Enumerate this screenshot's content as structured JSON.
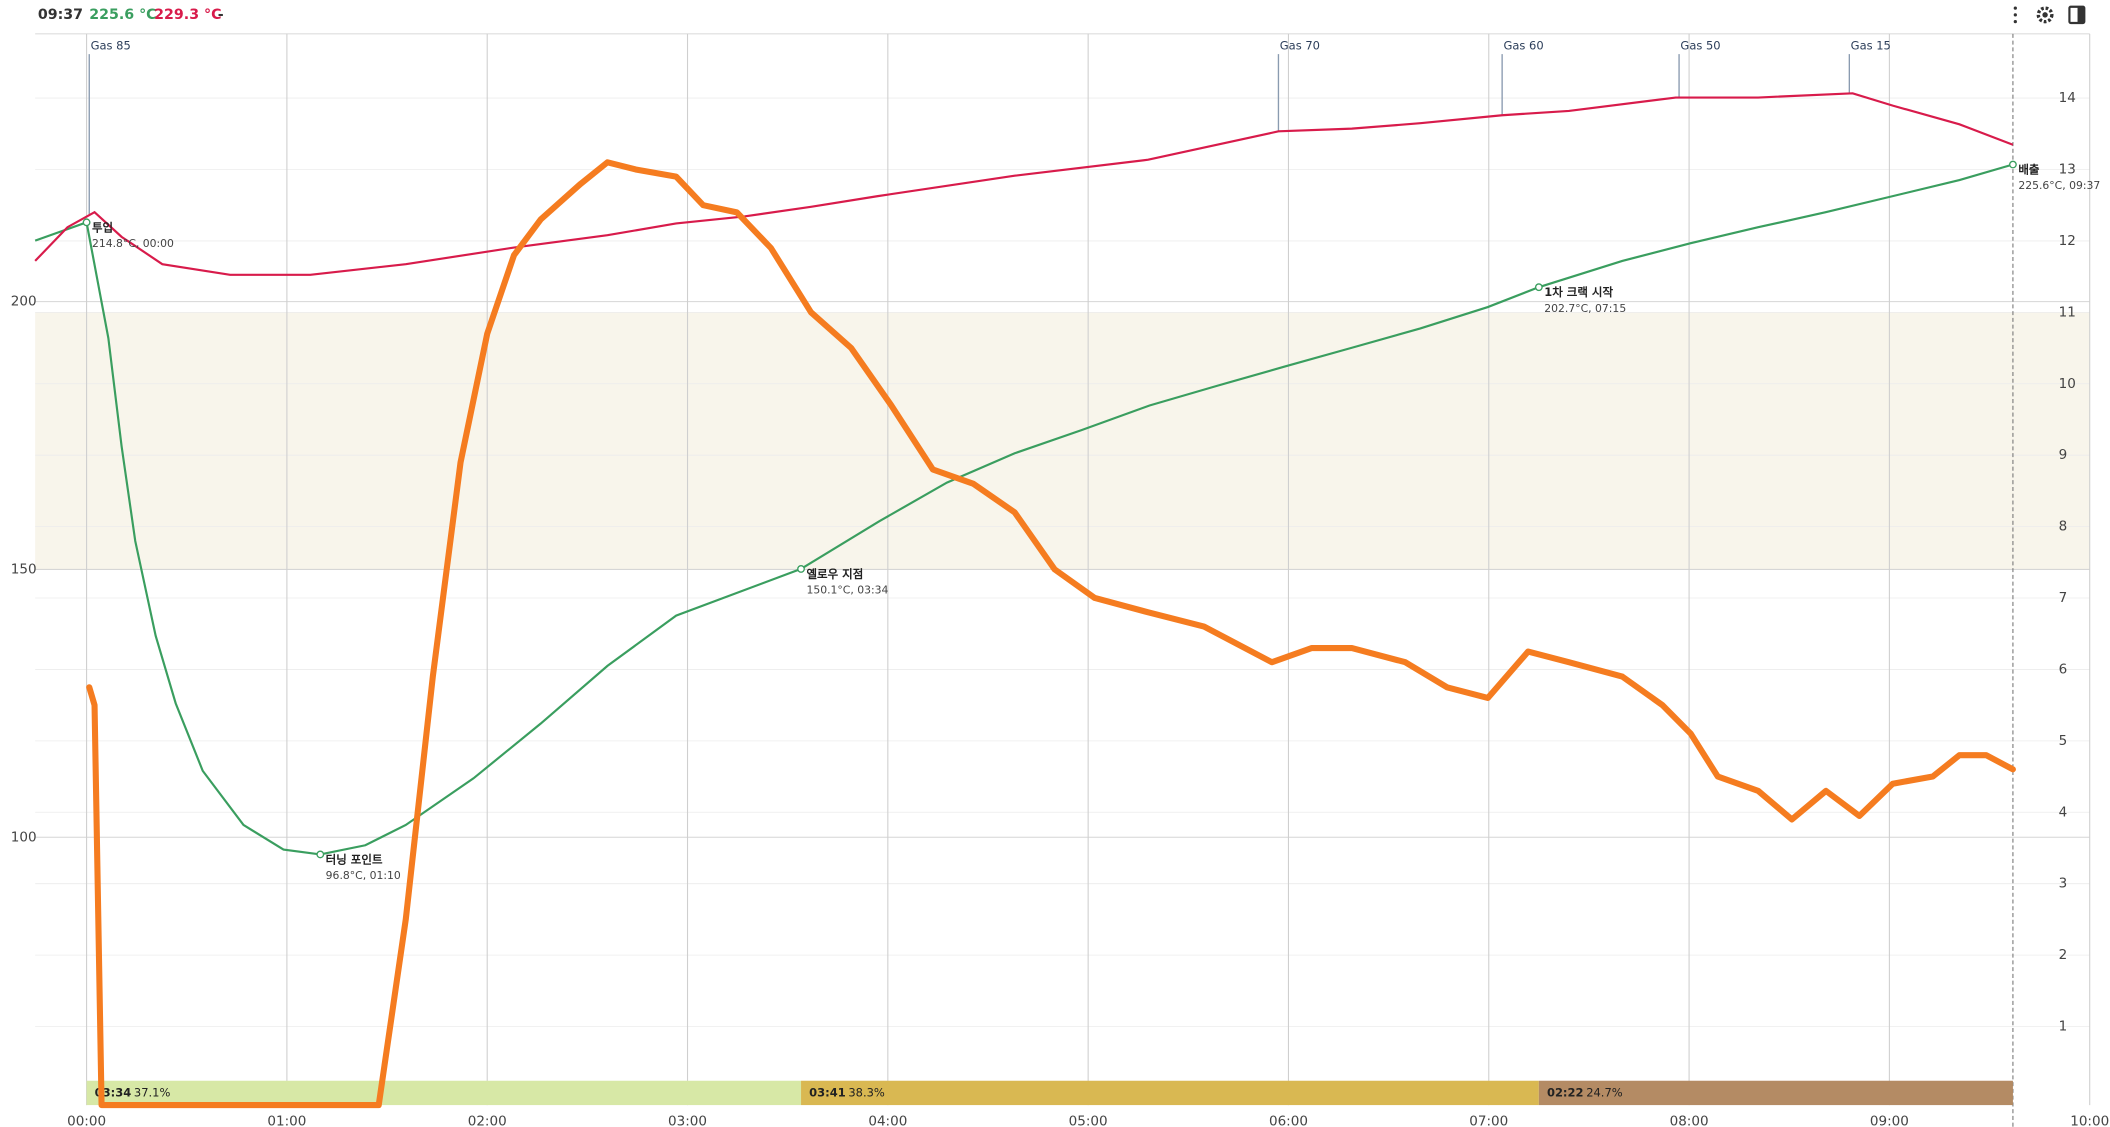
{
  "header": {
    "time": "09:37",
    "bean_temp": "225.6 °C",
    "env_temp": "229.3 °C",
    "ror": "-"
  },
  "chart_data": {
    "type": "line",
    "xlim": [
      -15.4,
      600
    ],
    "xticks": [
      {
        "value": 0,
        "label": "00:00"
      },
      {
        "value": 60,
        "label": "01:00"
      },
      {
        "value": 120,
        "label": "02:00"
      },
      {
        "value": 180,
        "label": "03:00"
      },
      {
        "value": 240,
        "label": "04:00"
      },
      {
        "value": 300,
        "label": "05:00"
      },
      {
        "value": 360,
        "label": "06:00"
      },
      {
        "value": 420,
        "label": "07:00"
      },
      {
        "value": 480,
        "label": "08:00"
      },
      {
        "value": 540,
        "label": "09:00"
      },
      {
        "value": 600,
        "label": "10:00"
      }
    ],
    "ylim": [
      50,
      250
    ],
    "yticks": [
      100,
      150,
      200
    ],
    "y2lim": [
      -0.1,
      14.9
    ],
    "y2ticks": [
      1,
      2,
      3,
      4,
      5,
      6,
      7,
      8,
      9,
      10,
      11,
      12,
      13,
      14
    ],
    "band": {
      "range": [
        150,
        198
      ],
      "color": "#f8f5eb"
    },
    "current_x": 577,
    "series": [
      {
        "color": "#3a9e5f",
        "x": [
          -15.4,
          0,
          6.5,
          10.5,
          14.6,
          20.7,
          26.7,
          34.8,
          47,
          59,
          70,
          83.5,
          95.6,
          115.9,
          136,
          156,
          176.6,
          214,
          237.4,
          257.7,
          278,
          298,
          318.4,
          338.7,
          359,
          379,
          399.5,
          419.7,
          435,
          460,
          480.5,
          500.7,
          520.9,
          541,
          561,
          577
        ],
        "values": [
          211.4,
          214.8,
          193.2,
          173,
          155.3,
          137.6,
          125,
          112.4,
          102.3,
          97.7,
          96.8,
          98.5,
          102.3,
          111,
          121.2,
          132,
          141.4,
          150.1,
          159,
          166.2,
          171.7,
          176,
          180.6,
          184.3,
          187.9,
          191.4,
          195,
          199,
          202.7,
          207.6,
          210.9,
          213.9,
          216.7,
          219.7,
          222.7,
          225.6
        ]
      },
      {
        "color": "#d81b4b",
        "x": [
          -15.4,
          -5.7,
          2.4,
          10.5,
          22.7,
          43,
          67,
          95.6,
          128,
          156,
          176.6,
          197,
          217,
          237,
          278,
          318,
          357,
          379,
          399.5,
          424,
          444,
          476,
          500.7,
          529,
          541,
          561,
          577
        ],
        "values": [
          207.6,
          213.9,
          216.7,
          212.1,
          207,
          205,
          205,
          207,
          210.1,
          212.4,
          214.6,
          215.9,
          217.7,
          219.7,
          223.5,
          226.5,
          231.8,
          232.3,
          233.3,
          234.8,
          235.6,
          238.1,
          238.1,
          238.9,
          236.6,
          233.1,
          229.3
        ]
      },
      {
        "color": "#f57c20",
        "axis": "y2",
        "x": [
          0.8,
          2.4,
          4.5,
          87.5,
          95.6,
          103.7,
          112,
          120,
          128,
          136,
          148,
          156,
          164.5,
          176.6,
          184.7,
          194.8,
          205,
          217,
          229,
          241,
          253.5,
          265.6,
          278,
          290,
          302,
          318,
          334.7,
          355,
          367,
          379,
          395,
          407.5,
          419.7,
          431.8,
          444,
          460,
          472,
          480.5,
          488.6,
          500.7,
          510.8,
          521,
          531,
          541,
          553,
          561,
          569,
          577
        ],
        "values": [
          5.75,
          5.5,
          -0.1,
          -0.1,
          2.5,
          5.9,
          8.9,
          10.7,
          11.8,
          12.3,
          12.8,
          13.1,
          13.0,
          12.9,
          12.5,
          12.4,
          11.9,
          11.0,
          10.5,
          9.7,
          8.8,
          8.6,
          8.2,
          7.4,
          7.0,
          6.8,
          6.6,
          6.1,
          6.3,
          6.3,
          6.1,
          5.75,
          5.6,
          6.25,
          6.1,
          5.9,
          5.5,
          5.1,
          4.5,
          4.3,
          3.9,
          4.3,
          3.95,
          4.4,
          4.5,
          4.8,
          4.8,
          4.6
        ]
      }
    ],
    "events": [
      {
        "label": "Gas 85",
        "x": 0.8
      },
      {
        "label": "Gas 70",
        "x": 357
      },
      {
        "label": "Gas 60",
        "x": 424
      },
      {
        "label": "Gas 50",
        "x": 477
      },
      {
        "label": "Gas 15",
        "x": 528
      }
    ],
    "annotations": [
      {
        "label": "투입",
        "detail": "214.8°C, 00:00",
        "x": 0,
        "y": 214.8
      },
      {
        "label": "터닝 포인트",
        "detail": "96.8°C, 01:10",
        "x": 70,
        "y": 96.8
      },
      {
        "label": "옐로우 지점",
        "detail": "150.1°C, 03:34",
        "x": 214,
        "y": 150.1
      },
      {
        "label": "1차 크랙 시작",
        "detail": "202.7°C, 07:15",
        "x": 435,
        "y": 202.7
      },
      {
        "label": "배출",
        "detail": "225.6°C, 09:37",
        "x": 577,
        "y": 225.6
      }
    ],
    "phases": [
      {
        "duration": "03:34",
        "percent": "37.1%",
        "start": 0,
        "end": 214,
        "color": "#d7e8a6"
      },
      {
        "duration": "03:41",
        "percent": "38.3%",
        "start": 214,
        "end": 435,
        "color": "#d9b852"
      },
      {
        "duration": "02:22",
        "percent": "24.7%",
        "start": 435,
        "end": 577,
        "color": "#b48b64"
      }
    ]
  }
}
